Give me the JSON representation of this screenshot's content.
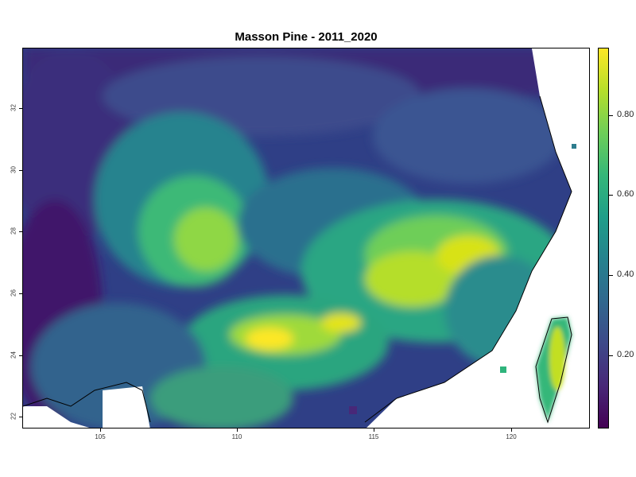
{
  "map": {
    "title": "Masson Pine - 2011_2020",
    "x_ticks": [
      "105",
      "110",
      "115",
      "120"
    ],
    "y_ticks": [
      "22",
      "24",
      "26",
      "28",
      "30",
      "32"
    ],
    "x_range": [
      102,
      123
    ],
    "y_range": [
      21.6,
      33.1
    ],
    "legend": {
      "labels": [
        "0.20",
        "0.40",
        "0.60",
        "0.80"
      ],
      "values": [
        0.2,
        0.4,
        0.6,
        0.8
      ],
      "range": [
        0.01,
        0.97
      ],
      "colors": [
        "#440154",
        "#482878",
        "#3e4989",
        "#31688e",
        "#26828e",
        "#1f9e89",
        "#35b779",
        "#6ece58",
        "#b5de2b",
        "#fde725"
      ]
    }
  }
}
